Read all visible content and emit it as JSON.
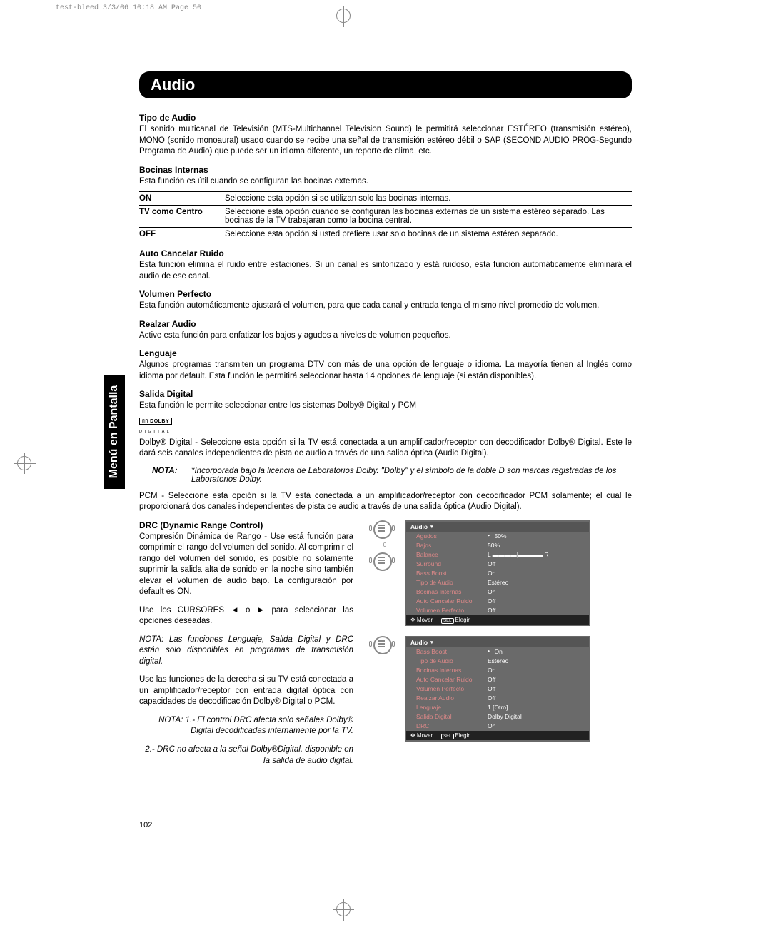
{
  "pageHeader": "test-bleed  3/3/06  10:18 AM  Page 50",
  "sideLabel": "Menú en Pantalla",
  "title": "Audio",
  "pageNumber": "102",
  "sections": {
    "tipoAudio": {
      "h": "Tipo de Audio",
      "p": "El sonido multicanal de Televisión (MTS-Multichannel Television Sound) le permitirá seleccionar ESTÉREO (transmisión estéreo), MONO (sonido monoaural) usado cuando se recibe una señal de transmisión estéreo débil o SAP (SECOND AUDIO PROG-Segundo Programa de Audio) que puede ser un idioma diferente, un reporte de clima, etc."
    },
    "bocinas": {
      "h": "Bocinas Internas",
      "p": "Esta función es útil cuando se configuran las bocinas externas.",
      "opts": [
        {
          "k": "ON",
          "v": "Seleccione esta opción si se utilizan solo las bocinas internas."
        },
        {
          "k": "TV como Centro",
          "v": "Seleccione esta opción cuando se configuran las bocinas externas de un sistema estéreo separado. Las bocinas de la TV trabajaran como la bocina central."
        },
        {
          "k": "OFF",
          "v": "Seleccione esta opción si usted prefiere usar solo bocinas de un sistema estéreo separado."
        }
      ]
    },
    "autoCancel": {
      "h": "Auto Cancelar Ruido",
      "p": "Esta función elimina el ruido entre estaciones. Si un canal es sintonizado y está ruidoso, esta función automáticamente eliminará el audio de ese canal."
    },
    "volPerf": {
      "h": "Volumen Perfecto",
      "p": "Esta función automáticamente ajustará el volumen, para que cada canal y entrada tenga el mismo nivel promedio de volumen."
    },
    "realzar": {
      "h": "Realzar Audio",
      "p": "Active esta función para enfatizar los bajos y agudos a niveles de volumen pequeños."
    },
    "lenguaje": {
      "h": "Lenguaje",
      "p": "Algunos programas transmiten un programa DTV con más de una opción de lenguaje o idioma. La mayoría tienen al Inglés como idioma por default. Esta función le permitirá seleccionar hasta 14 opciones de lenguaje (si están disponibles)."
    },
    "salida": {
      "h": "Salida Digital",
      "p1": "Esta función le permite seleccionar entre los sistemas Dolby® Digital y PCM",
      "dolbyBadge": "▯▯ DOLBY",
      "dolbySub": "D I G I T A L",
      "p2": "Dolby® Digital - Seleccione esta opción si la TV está conectada a un amplificador/receptor con decodificador Dolby® Digital. Este le dará seis canales independientes de pista de audio a través de una salida óptica (Audio Digital).",
      "nota1k": "NOTA:",
      "nota1v": "*Incorporada bajo la licencia de Laboratorios Dolby. \"Dolby\" y el símbolo de la doble D son marcas registradas de los Laboratorios Dolby.",
      "p3": "PCM - Seleccione esta opción si la TV está conectada a un amplificador/receptor con decodificador PCM solamente; el cual le proporcionará dos canales independientes de pista de audio a través de una salida óptica (Audio Digital)."
    },
    "drc": {
      "h": "DRC (Dynamic Range Control)",
      "p1": "Compresión Dinámica de Rango - Use está función para comprimir el rango del volumen del sonido. Al comprimir el rango del volumen del sonido, es posible no solamente suprimir la salida alta de sonido en la noche sino también elevar el volumen de audio bajo. La configuración por default es ON.",
      "p2": "Use los CURSORES ◄ o ► para seleccionar las opciones deseadas.",
      "nota2": "NOTA: Las funciones Lenguaje, Salida Digital y DRC están solo disponibles en programas de transmisión digital.",
      "p3": "Use las funciones de la derecha si su TV está conectada a un amplificador/receptor con entrada digital óptica con capacidades de decodificación Dolby® Digital o PCM.",
      "nota3a": "NOTA: 1.- El control DRC afecta solo señales Dolby® Digital decodificadas internamente por la TV.",
      "nota3b": "2.- DRC no afecta a la señal Dolby®Digital. disponible en la salida de audio digital."
    }
  },
  "menu1": {
    "title": "Audio",
    "dialLabel": "0",
    "rows": [
      {
        "l": "Agudos",
        "v": "50%",
        "a": "▸"
      },
      {
        "l": "Bajos",
        "v": "50%"
      },
      {
        "l": "Balance",
        "v": "L ▬▬▬▬|▬▬▬▬ R"
      },
      {
        "l": "Surround",
        "v": "Off"
      },
      {
        "l": "Bass Boost",
        "v": "On"
      },
      {
        "l": "Tipo de Audio",
        "v": "Estéreo"
      },
      {
        "l": "Bocinas Internas",
        "v": "On"
      },
      {
        "l": "Auto Cancelar Ruido",
        "v": "Off"
      },
      {
        "l": "Volumen Perfecto",
        "v": "Off"
      }
    ],
    "footer": {
      "mover": "✥ Mover",
      "sel": "SEL",
      "elegir": "Elegir"
    }
  },
  "menu2": {
    "title": "Audio",
    "rows": [
      {
        "l": "Bass Boost",
        "v": "On",
        "a": "▸"
      },
      {
        "l": "Tipo de Audio",
        "v": "Estéreo"
      },
      {
        "l": "Bocinas Internas",
        "v": "On"
      },
      {
        "l": "Auto Cancelar Ruido",
        "v": "Off"
      },
      {
        "l": "Volumen Perfecto",
        "v": "Off"
      },
      {
        "l": "Realzar Audio",
        "v": "Off"
      },
      {
        "l": "Lenguaje",
        "v": "1 [Otro]"
      },
      {
        "l": "Salida Digital",
        "v": "Dolby Digital"
      },
      {
        "l": "DRC",
        "v": "On"
      }
    ],
    "footer": {
      "mover": "✥ Mover",
      "sel": "SEL",
      "elegir": "Elegir"
    }
  }
}
